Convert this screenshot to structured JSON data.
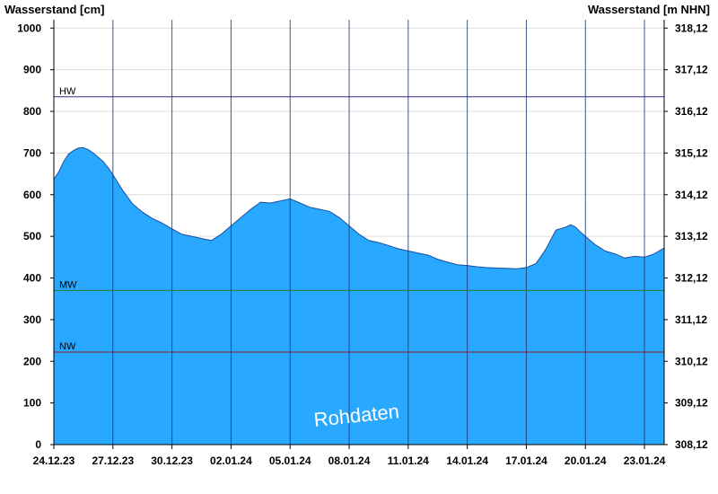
{
  "chart_data": {
    "type": "area",
    "title_left": "Wasserstand [cm]",
    "title_right": "Wasserstand [m NHN]",
    "ylim": [
      0,
      1020
    ],
    "y_ticks": [
      0,
      100,
      200,
      300,
      400,
      500,
      600,
      700,
      800,
      900,
      1000
    ],
    "y_right_ticks": [
      "308,12",
      "309,12",
      "310,12",
      "311,12",
      "312,12",
      "313,12",
      "314,12",
      "315,12",
      "316,12",
      "317,12",
      "318,12"
    ],
    "x_tick_labels": [
      "24.12.23",
      "27.12.23",
      "30.12.23",
      "02.01.24",
      "05.01.24",
      "08.01.24",
      "11.01.24",
      "14.01.24",
      "17.01.24",
      "20.01.24",
      "23.01.24"
    ],
    "x_range_days": [
      0,
      31
    ],
    "reference_lines": [
      {
        "label": "HW",
        "value": 835,
        "color": "#3a2a8a"
      },
      {
        "label": "MW",
        "value": 370,
        "color": "#2e7d32"
      },
      {
        "label": "NW",
        "value": 222,
        "color": "#8b1a2a"
      }
    ],
    "series": [
      {
        "x": [
          0,
          0.25,
          0.5,
          0.75,
          1.0,
          1.25,
          1.5,
          1.75,
          2.0,
          2.25,
          2.5,
          2.75,
          3.0,
          3.5,
          4.0,
          4.5,
          5.0,
          5.5,
          6.0,
          6.5,
          7.0,
          7.5,
          8.0,
          8.5,
          9.0,
          9.5,
          10.0,
          10.5,
          11.0,
          11.5,
          12.0,
          12.5,
          13.0,
          13.5,
          14.0,
          14.5,
          15.0,
          15.5,
          16.0,
          16.5,
          17.0,
          17.5,
          18.0,
          18.5,
          19.0,
          19.5,
          20.0,
          20.5,
          21.0,
          21.5,
          22.0,
          22.5,
          23.0,
          23.5,
          24.0,
          24.5,
          25.0,
          25.5,
          26.0,
          26.25,
          26.5,
          26.75,
          27.0,
          27.25,
          27.5,
          28.0,
          28.5,
          29.0,
          29.5,
          30.0,
          30.5,
          31.0
        ],
        "values": [
          637,
          655,
          680,
          698,
          706,
          712,
          713,
          708,
          700,
          690,
          680,
          665,
          648,
          610,
          578,
          558,
          543,
          532,
          518,
          505,
          500,
          495,
          490,
          505,
          525,
          545,
          565,
          582,
          580,
          585,
          590,
          580,
          570,
          565,
          560,
          545,
          525,
          505,
          490,
          485,
          478,
          470,
          465,
          460,
          455,
          445,
          438,
          432,
          430,
          427,
          425,
          424,
          423,
          422,
          425,
          435,
          470,
          515,
          522,
          528,
          522,
          510,
          500,
          490,
          480,
          465,
          458,
          448,
          452,
          450,
          458,
          472
        ]
      }
    ],
    "colors": {
      "fill": "#29a8ff",
      "fill_stroke": "#1a4fa0",
      "grid": "#dcdcdc",
      "vgrid": "#1e3a6e"
    },
    "watermark": "Rohdaten"
  }
}
